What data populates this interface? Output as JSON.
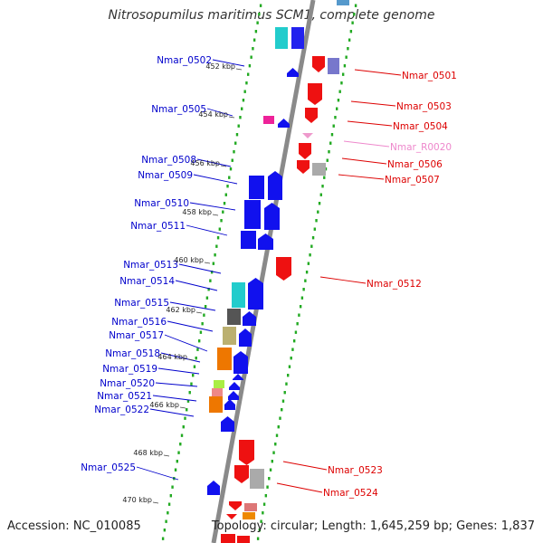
{
  "title": "Nitrosopumilus maritimus SCM1, complete genome",
  "footer": {
    "accession": "Accession: NC_010085",
    "topology": "Topology: circular; Length: 1,645,259 bp; Genes: 1,837"
  },
  "colors": {
    "forward_label": "#0000cc",
    "reverse_label": "#dd0000",
    "rna_label": "#ee88cc",
    "backbone": "#888888",
    "ticks": "#22aa22"
  },
  "kbp_marks": [
    "452 kbp",
    "454 kbp",
    "456 kbp",
    "458 kbp",
    "460 kbp",
    "462 kbp",
    "464 kbp",
    "466 kbp",
    "468 kbp",
    "470 kbp"
  ],
  "left_genes": [
    "Nmar_0502",
    "Nmar_0505",
    "Nmar_0508",
    "Nmar_0509",
    "Nmar_0510",
    "Nmar_0511",
    "Nmar_0513",
    "Nmar_0514",
    "Nmar_0515",
    "Nmar_0516",
    "Nmar_0517",
    "Nmar_0518",
    "Nmar_0519",
    "Nmar_0520",
    "Nmar_0521",
    "Nmar_0522",
    "Nmar_0525"
  ],
  "right_genes": [
    "Nmar_0501",
    "Nmar_0503",
    "Nmar_0504",
    "Nmar_R0020",
    "Nmar_0506",
    "Nmar_0507",
    "Nmar_0512",
    "Nmar_0523",
    "Nmar_0524"
  ]
}
